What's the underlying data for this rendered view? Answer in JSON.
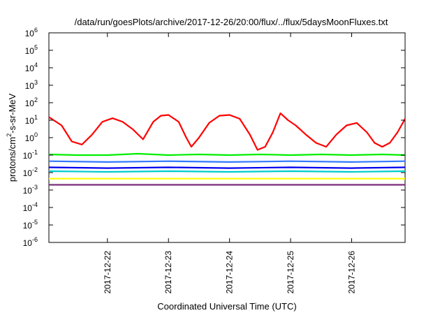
{
  "chart_data": {
    "type": "line",
    "title": "/data/run/goesPlots/archive/2017-12-26/20:00/flux/../flux/5daysMoonFluxes.txt",
    "xlabel": "Coordinated Universal Time (UTC)",
    "ylabel_parts": [
      "protons/cm",
      "2",
      "-s-sr-MeV"
    ],
    "y_scale": "log",
    "ylim": [
      1e-06,
      1000000.0
    ],
    "xlim": [
      "2017-12-21 01:00",
      "2017-12-26 21:00"
    ],
    "x_tick_labels": [
      "2017-12-22",
      "2017-12-23",
      "2017-12-24",
      "2017-12-25",
      "2017-12-26"
    ],
    "x_tick_values": [
      "2017-12-22 00:00",
      "2017-12-23 00:00",
      "2017-12-24 00:00",
      "2017-12-25 00:00",
      "2017-12-26 00:00"
    ],
    "y_tick_exponents": [
      -6,
      -5,
      -4,
      -3,
      -2,
      -1,
      0,
      1,
      2,
      3,
      4,
      5,
      6
    ],
    "y_tick_base": "10",
    "grid": false,
    "legend": "none",
    "series": [
      {
        "color": "#ff0000",
        "x": [
          "2017-12-21 01:00",
          "2017-12-21 06:00",
          "2017-12-21 10:00",
          "2017-12-21 14:00",
          "2017-12-21 18:00",
          "2017-12-21 22:00",
          "2017-12-22 02:00",
          "2017-12-22 06:00",
          "2017-12-22 10:00",
          "2017-12-22 14:00",
          "2017-12-22 18:00",
          "2017-12-22 21:00",
          "2017-12-23 00:00",
          "2017-12-23 04:00",
          "2017-12-23 07:00",
          "2017-12-23 09:00",
          "2017-12-23 12:00",
          "2017-12-23 16:00",
          "2017-12-23 20:00",
          "2017-12-24 00:00",
          "2017-12-24 04:00",
          "2017-12-24 08:00",
          "2017-12-24 11:00",
          "2017-12-24 14:00",
          "2017-12-24 17:00",
          "2017-12-24 20:00",
          "2017-12-24 23:00",
          "2017-12-25 02:00",
          "2017-12-25 06:00",
          "2017-12-25 10:00",
          "2017-12-25 14:00",
          "2017-12-25 18:00",
          "2017-12-25 22:00",
          "2017-12-26 02:00",
          "2017-12-26 06:00",
          "2017-12-26 09:00",
          "2017-12-26 12:00",
          "2017-12-26 15:00",
          "2017-12-26 18:00",
          "2017-12-26 21:00"
        ],
        "values": [
          15,
          5,
          0.6,
          0.4,
          1.5,
          8,
          13,
          8,
          3,
          0.8,
          8,
          18,
          20,
          8,
          1,
          0.3,
          1,
          7,
          18,
          20,
          12,
          1.5,
          0.2,
          0.3,
          2,
          25,
          10,
          5,
          1.5,
          0.5,
          0.3,
          1.5,
          5,
          7,
          2,
          0.5,
          0.3,
          0.5,
          2,
          12
        ]
      },
      {
        "color": "#00ee00",
        "x": [
          "2017-12-21 01:00",
          "2017-12-21 12:00",
          "2017-12-22 00:00",
          "2017-12-22 12:00",
          "2017-12-23 00:00",
          "2017-12-23 12:00",
          "2017-12-24 00:00",
          "2017-12-24 12:00",
          "2017-12-25 00:00",
          "2017-12-25 12:00",
          "2017-12-26 00:00",
          "2017-12-26 12:00",
          "2017-12-26 21:00"
        ],
        "values": [
          0.11,
          0.1,
          0.1,
          0.12,
          0.1,
          0.11,
          0.1,
          0.11,
          0.1,
          0.11,
          0.1,
          0.11,
          0.1
        ]
      },
      {
        "color": "#00cccc",
        "x": [
          "2017-12-21 01:00",
          "2017-12-22 00:00",
          "2017-12-23 00:00",
          "2017-12-24 00:00",
          "2017-12-25 00:00",
          "2017-12-26 00:00",
          "2017-12-26 21:00"
        ],
        "values": [
          0.012,
          0.011,
          0.012,
          0.011,
          0.012,
          0.011,
          0.012
        ]
      },
      {
        "color": "#3377ff",
        "x": [
          "2017-12-21 01:00",
          "2017-12-22 00:00",
          "2017-12-23 00:00",
          "2017-12-24 00:00",
          "2017-12-25 00:00",
          "2017-12-26 00:00",
          "2017-12-26 21:00"
        ],
        "values": [
          0.045,
          0.04,
          0.045,
          0.04,
          0.045,
          0.04,
          0.045
        ]
      },
      {
        "color": "#0000ee",
        "x": [
          "2017-12-21 01:00",
          "2017-12-22 00:00",
          "2017-12-23 00:00",
          "2017-12-24 00:00",
          "2017-12-25 00:00",
          "2017-12-26 00:00",
          "2017-12-26 21:00"
        ],
        "values": [
          0.02,
          0.018,
          0.02,
          0.018,
          0.02,
          0.018,
          0.02
        ]
      },
      {
        "color": "#ffff00",
        "x": [
          "2017-12-21 01:00",
          "2017-12-22 00:00",
          "2017-12-23 00:00",
          "2017-12-24 00:00",
          "2017-12-25 00:00",
          "2017-12-26 00:00",
          "2017-12-26 21:00"
        ],
        "values": [
          0.0045,
          0.0045,
          0.0045,
          0.0045,
          0.0045,
          0.0045,
          0.0045
        ]
      },
      {
        "color": "#7b2d7b",
        "x": [
          "2017-12-21 01:00",
          "2017-12-22 00:00",
          "2017-12-23 00:00",
          "2017-12-24 00:00",
          "2017-12-25 00:00",
          "2017-12-26 00:00",
          "2017-12-26 21:00"
        ],
        "values": [
          0.002,
          0.002,
          0.002,
          0.002,
          0.002,
          0.002,
          0.002
        ]
      }
    ]
  }
}
